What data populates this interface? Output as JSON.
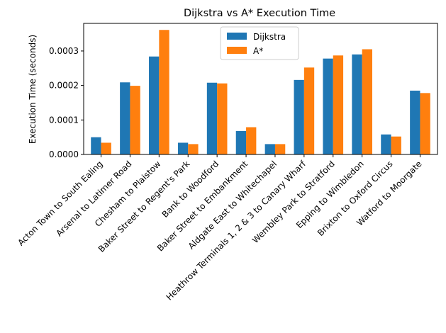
{
  "chart_data": {
    "type": "bar",
    "title": "Dijkstra vs A* Execution Time",
    "xlabel": "",
    "ylabel": "Execution Time (seconds)",
    "ylim": [
      0,
      0.00038
    ],
    "yticks": [
      0.0,
      0.0001,
      0.0002,
      0.0003
    ],
    "ytick_labels": [
      "0.0000",
      "0.0001",
      "0.0002",
      "0.0003"
    ],
    "legend_position": "top-center",
    "grid": false,
    "categories": [
      "Acton Town to South Ealing",
      "Arsenal to Latimer Road",
      "Chesham to Plaistow",
      "Baker Street to Regent's Park",
      "Bank to Woodford",
      "Baker Street to Embankment",
      "Aldgate East to Whitechapel",
      "Heathrow Terminals 1, 2 & 3 to Canary Wharf",
      "Wembley Park to Stratford",
      "Epping to Wimbledon",
      "Brixton to Oxford Circus",
      "Watford to Moorgate"
    ],
    "series": [
      {
        "name": "Dijkstra",
        "color": "#1f77b4",
        "values": [
          5e-05,
          0.000209,
          0.000284,
          3.4e-05,
          0.000208,
          6.8e-05,
          3e-05,
          0.000216,
          0.000278,
          0.00029,
          5.8e-05,
          0.000185
        ]
      },
      {
        "name": "A*",
        "color": "#ff7f0e",
        "values": [
          3.4e-05,
          0.000199,
          0.000361,
          3e-05,
          0.000206,
          7.9e-05,
          3e-05,
          0.000252,
          0.000287,
          0.000305,
          5.2e-05,
          0.000178
        ]
      }
    ]
  }
}
